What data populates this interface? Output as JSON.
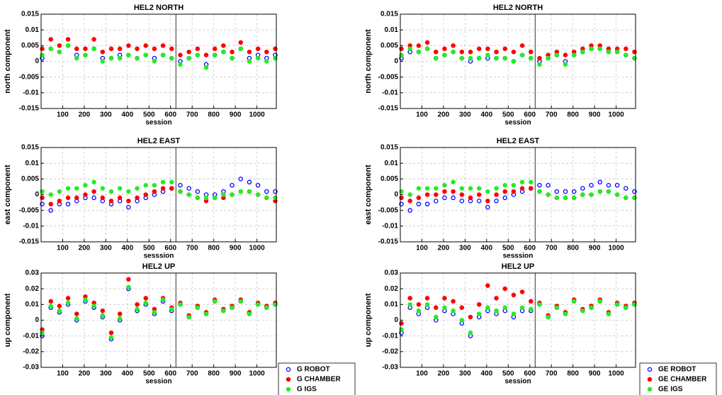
{
  "chart_data": [
    {
      "type": "scatter",
      "title": "HEL2 NORTH",
      "xlabel": "session",
      "ylabel": "north component",
      "x": [
        5,
        45,
        85,
        125,
        165,
        205,
        245,
        285,
        325,
        365,
        405,
        445,
        485,
        525,
        565,
        605,
        645,
        685,
        725,
        765,
        805,
        845,
        885,
        925,
        965,
        1005,
        1045,
        1085
      ],
      "xlim": [
        0,
        1090
      ],
      "xticks": [
        100,
        200,
        300,
        400,
        500,
        600,
        700,
        800,
        900,
        1000
      ],
      "ylim": [
        -0.015,
        0.015
      ],
      "yticks": [
        -0.015,
        -0.01,
        -0.005,
        0,
        0.005,
        0.01,
        0.015
      ],
      "grid": true,
      "vline": 625,
      "series": [
        {
          "name": "G ROBOT",
          "color": "#0000ff",
          "values": [
            0.001,
            0.004,
            0.003,
            0.005,
            0.002,
            0.002,
            0.004,
            0.001,
            0.001,
            0.002,
            0.002,
            0.001,
            0.002,
            0.001,
            0.002,
            0.001,
            0.0,
            0.001,
            0.002,
            -0.001,
            0.002,
            0.003,
            0.001,
            0.004,
            0.001,
            0.002,
            0.001,
            0.002
          ]
        },
        {
          "name": "G CHAMBER",
          "color": "#ff0000",
          "values": [
            0.004,
            0.007,
            0.005,
            0.007,
            0.004,
            0.004,
            0.007,
            0.003,
            0.004,
            0.004,
            0.005,
            0.004,
            0.005,
            0.004,
            0.005,
            0.004,
            0.002,
            0.003,
            0.004,
            0.002,
            0.004,
            0.005,
            0.003,
            0.006,
            0.003,
            0.004,
            0.003,
            0.004
          ]
        },
        {
          "name": "G IGS",
          "color": "#22ee22",
          "values": [
            0.002,
            0.004,
            0.003,
            0.005,
            0.001,
            0.002,
            0.004,
            0.0,
            0.001,
            0.001,
            0.002,
            0.001,
            0.002,
            0.0,
            0.002,
            0.001,
            -0.001,
            0.001,
            0.002,
            -0.002,
            0.002,
            0.003,
            0.001,
            0.004,
            0.0,
            0.001,
            0.0,
            0.001
          ]
        }
      ]
    },
    {
      "type": "scatter",
      "title": "HEL2 NORTH",
      "xlabel": "session",
      "ylabel": "north component",
      "x": [
        5,
        45,
        85,
        125,
        165,
        205,
        245,
        285,
        325,
        365,
        405,
        445,
        485,
        525,
        565,
        605,
        645,
        685,
        725,
        765,
        805,
        845,
        885,
        925,
        965,
        1005,
        1045,
        1085
      ],
      "xlim": [
        0,
        1090
      ],
      "xticks": [
        100,
        200,
        300,
        400,
        500,
        600,
        700,
        800,
        900,
        1000
      ],
      "ylim": [
        -0.015,
        0.015
      ],
      "yticks": [
        -0.015,
        -0.01,
        -0.005,
        0,
        0.005,
        0.01,
        0.015
      ],
      "grid": true,
      "vline": 625,
      "series": [
        {
          "name": "GE ROBOT",
          "color": "#0000ff",
          "values": [
            0.001,
            0.003,
            0.003,
            0.004,
            0.001,
            0.002,
            0.003,
            0.001,
            0.0,
            0.001,
            0.001,
            0.001,
            0.001,
            0.0,
            0.002,
            0.001,
            0.0,
            0.001,
            0.002,
            0.0,
            0.002,
            0.003,
            0.004,
            0.004,
            0.003,
            0.003,
            0.002,
            0.001
          ]
        },
        {
          "name": "GE CHAMBER",
          "color": "#ff0000",
          "values": [
            0.004,
            0.005,
            0.005,
            0.006,
            0.003,
            0.004,
            0.005,
            0.003,
            0.003,
            0.004,
            0.004,
            0.003,
            0.004,
            0.003,
            0.005,
            0.003,
            0.001,
            0.002,
            0.003,
            0.002,
            0.003,
            0.004,
            0.005,
            0.005,
            0.004,
            0.004,
            0.004,
            0.003
          ]
        },
        {
          "name": "GE IGS",
          "color": "#22ee22",
          "values": [
            0.002,
            0.004,
            0.003,
            0.004,
            0.001,
            0.002,
            0.003,
            0.001,
            0.001,
            0.001,
            0.002,
            0.001,
            0.001,
            0.0,
            0.002,
            0.001,
            -0.001,
            0.001,
            0.002,
            -0.001,
            0.002,
            0.003,
            0.004,
            0.004,
            0.003,
            0.003,
            0.002,
            0.001
          ]
        }
      ]
    },
    {
      "type": "scatter",
      "title": "HEL2 EAST",
      "xlabel": "sesssion",
      "ylabel": "east component",
      "x": [
        5,
        45,
        85,
        125,
        165,
        205,
        245,
        285,
        325,
        365,
        405,
        445,
        485,
        525,
        565,
        605,
        645,
        685,
        725,
        765,
        805,
        845,
        885,
        925,
        965,
        1005,
        1045,
        1085
      ],
      "xlim": [
        0,
        1090
      ],
      "xticks": [
        100,
        200,
        300,
        400,
        500,
        600,
        700,
        800,
        900,
        1000
      ],
      "ylim": [
        -0.015,
        0.015
      ],
      "yticks": [
        -0.015,
        -0.01,
        -0.005,
        0,
        0.005,
        0.01,
        0.015
      ],
      "grid": true,
      "vline": 625,
      "series": [
        {
          "name": "G ROBOT",
          "color": "#0000ff",
          "values": [
            -0.003,
            -0.005,
            -0.003,
            -0.003,
            -0.002,
            -0.001,
            -0.001,
            -0.002,
            -0.003,
            -0.002,
            -0.004,
            -0.002,
            -0.001,
            0.0,
            0.001,
            0.002,
            0.003,
            0.002,
            0.001,
            0.0,
            0.0,
            0.001,
            0.003,
            0.005,
            0.004,
            0.003,
            0.001,
            0.001
          ]
        },
        {
          "name": "G CHAMBER",
          "color": "#ff0000",
          "values": [
            -0.001,
            -0.003,
            -0.002,
            -0.001,
            -0.001,
            0.0,
            0.001,
            -0.001,
            -0.002,
            -0.001,
            -0.002,
            -0.001,
            0.0,
            0.001,
            0.002,
            0.002,
            0.001,
            0.0,
            -0.001,
            -0.002,
            -0.001,
            -0.001,
            0.0,
            0.001,
            0.001,
            0.0,
            -0.001,
            -0.002
          ]
        },
        {
          "name": "G IGS",
          "color": "#22ee22",
          "values": [
            0.001,
            0.0,
            0.001,
            0.002,
            0.002,
            0.003,
            0.004,
            0.002,
            0.001,
            0.002,
            0.001,
            0.002,
            0.003,
            0.003,
            0.004,
            0.004,
            0.001,
            0.0,
            -0.001,
            -0.001,
            -0.001,
            0.0,
            0.0,
            0.001,
            0.001,
            0.0,
            -0.001,
            -0.001
          ]
        }
      ]
    },
    {
      "type": "scatter",
      "title": "HEL2 EAST",
      "xlabel": "sesssion",
      "ylabel": "east component",
      "x": [
        5,
        45,
        85,
        125,
        165,
        205,
        245,
        285,
        325,
        365,
        405,
        445,
        485,
        525,
        565,
        605,
        645,
        685,
        725,
        765,
        805,
        845,
        885,
        925,
        965,
        1005,
        1045,
        1085
      ],
      "xlim": [
        0,
        1090
      ],
      "xticks": [
        100,
        200,
        300,
        400,
        500,
        600,
        700,
        800,
        900,
        1000
      ],
      "ylim": [
        -0.015,
        0.015
      ],
      "yticks": [
        -0.015,
        -0.01,
        -0.005,
        0,
        0.005,
        0.01,
        0.015
      ],
      "grid": true,
      "vline": 625,
      "series": [
        {
          "name": "GE ROBOT",
          "color": "#0000ff",
          "values": [
            -0.003,
            -0.005,
            -0.003,
            -0.003,
            -0.002,
            -0.001,
            -0.001,
            -0.002,
            -0.002,
            -0.002,
            -0.004,
            -0.002,
            -0.001,
            0.0,
            0.001,
            0.002,
            0.003,
            0.003,
            0.001,
            0.001,
            0.001,
            0.002,
            0.003,
            0.004,
            0.003,
            0.003,
            0.002,
            0.001
          ]
        },
        {
          "name": "GE CHAMBER",
          "color": "#ff0000",
          "values": [
            -0.001,
            -0.002,
            -0.001,
            0.0,
            0.0,
            0.001,
            0.001,
            0.0,
            -0.001,
            0.0,
            -0.002,
            0.0,
            0.001,
            0.001,
            0.002,
            0.002,
            0.001,
            0.0,
            -0.001,
            -0.001,
            -0.001,
            0.0,
            0.0,
            0.001,
            0.001,
            0.0,
            -0.001,
            -0.001
          ]
        },
        {
          "name": "GE IGS",
          "color": "#22ee22",
          "values": [
            0.001,
            0.0,
            0.002,
            0.002,
            0.002,
            0.003,
            0.004,
            0.002,
            0.002,
            0.002,
            0.001,
            0.002,
            0.003,
            0.003,
            0.004,
            0.004,
            0.001,
            0.0,
            -0.001,
            -0.001,
            -0.001,
            0.0,
            0.0,
            0.001,
            0.001,
            0.0,
            -0.001,
            -0.001
          ]
        }
      ]
    },
    {
      "type": "scatter",
      "title": "HEL2 UP",
      "xlabel": "session",
      "ylabel": "up component",
      "x": [
        5,
        45,
        85,
        125,
        165,
        205,
        245,
        285,
        325,
        365,
        405,
        445,
        485,
        525,
        565,
        605,
        645,
        685,
        725,
        765,
        805,
        845,
        885,
        925,
        965,
        1005,
        1045,
        1085
      ],
      "xlim": [
        0,
        1090
      ],
      "xticks": [
        100,
        200,
        300,
        400,
        500,
        600,
        700,
        800,
        900,
        1000
      ],
      "ylim": [
        -0.03,
        0.03
      ],
      "yticks": [
        -0.03,
        -0.02,
        -0.01,
        0,
        0.01,
        0.02,
        0.03
      ],
      "grid": true,
      "vline": 625,
      "legend": "lower right",
      "series": [
        {
          "name": "G ROBOT",
          "color": "#0000ff",
          "values": [
            -0.01,
            0.008,
            0.005,
            0.01,
            0.0,
            0.012,
            0.008,
            0.002,
            -0.012,
            0.0,
            0.02,
            0.006,
            0.01,
            0.004,
            0.012,
            0.006,
            0.01,
            0.002,
            0.008,
            0.004,
            0.012,
            0.006,
            0.008,
            0.012,
            0.004,
            0.01,
            0.008,
            0.01
          ]
        },
        {
          "name": "G CHAMBER",
          "color": "#ff0000",
          "values": [
            -0.006,
            0.012,
            0.009,
            0.014,
            0.004,
            0.015,
            0.011,
            0.006,
            -0.008,
            0.004,
            0.026,
            0.01,
            0.014,
            0.007,
            0.014,
            0.008,
            0.011,
            0.003,
            0.009,
            0.005,
            0.013,
            0.007,
            0.009,
            0.013,
            0.005,
            0.011,
            0.009,
            0.011
          ]
        },
        {
          "name": "G IGS",
          "color": "#22ee22",
          "values": [
            -0.008,
            0.009,
            0.006,
            0.011,
            0.001,
            0.013,
            0.009,
            0.003,
            -0.011,
            0.001,
            0.021,
            0.007,
            0.011,
            0.005,
            0.013,
            0.007,
            0.01,
            0.002,
            0.008,
            0.004,
            0.012,
            0.006,
            0.008,
            0.012,
            0.004,
            0.01,
            0.008,
            0.01
          ]
        }
      ]
    },
    {
      "type": "scatter",
      "title": "HEL2 UP",
      "xlabel": "session",
      "ylabel": "up component",
      "x": [
        5,
        45,
        85,
        125,
        165,
        205,
        245,
        285,
        325,
        365,
        405,
        445,
        485,
        525,
        565,
        605,
        645,
        685,
        725,
        765,
        805,
        845,
        885,
        925,
        965,
        1005,
        1045,
        1085
      ],
      "xlim": [
        0,
        1090
      ],
      "xticks": [
        100,
        200,
        300,
        400,
        500,
        600,
        700,
        800,
        900,
        1000
      ],
      "ylim": [
        -0.03,
        0.03
      ],
      "yticks": [
        -0.03,
        -0.02,
        -0.01,
        0,
        0.01,
        0.02,
        0.03
      ],
      "grid": true,
      "vline": 625,
      "legend": "lower right",
      "series": [
        {
          "name": "GE ROBOT",
          "color": "#0000ff",
          "values": [
            -0.008,
            0.008,
            0.004,
            0.008,
            0.0,
            0.006,
            0.004,
            -0.002,
            -0.01,
            0.002,
            0.006,
            0.004,
            0.006,
            0.002,
            0.006,
            0.006,
            0.01,
            0.002,
            0.008,
            0.004,
            0.012,
            0.006,
            0.008,
            0.012,
            0.004,
            0.01,
            0.008,
            0.01
          ]
        },
        {
          "name": "GE CHAMBER",
          "color": "#ff0000",
          "values": [
            -0.002,
            0.014,
            0.01,
            0.014,
            0.008,
            0.014,
            0.012,
            0.008,
            0.002,
            0.01,
            0.022,
            0.014,
            0.02,
            0.016,
            0.018,
            0.012,
            0.011,
            0.003,
            0.009,
            0.005,
            0.013,
            0.007,
            0.009,
            0.013,
            0.005,
            0.011,
            0.009,
            0.011
          ]
        },
        {
          "name": "GE IGS",
          "color": "#22ee22",
          "values": [
            -0.006,
            0.01,
            0.006,
            0.01,
            0.002,
            0.008,
            0.006,
            0.0,
            -0.008,
            0.004,
            0.008,
            0.006,
            0.008,
            0.004,
            0.008,
            0.007,
            0.01,
            0.002,
            0.008,
            0.004,
            0.012,
            0.006,
            0.008,
            0.012,
            0.004,
            0.01,
            0.008,
            0.01
          ]
        }
      ]
    }
  ]
}
